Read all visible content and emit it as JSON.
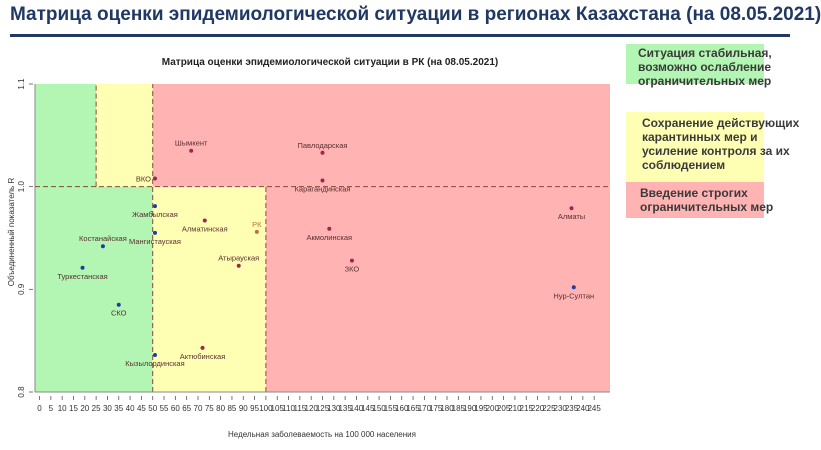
{
  "header": {
    "title": "Матрица оценки эпидемиологической ситуации в регионах Казахстана (на 08.05.2021)"
  },
  "legend": {
    "items": [
      {
        "label": "Ситуация стабильная, возможно ослабление ограничительных мер",
        "color": "#b3f5b3"
      },
      {
        "label": "Сохранение действующих карантинных мер и усиление контроля за их соблюдением",
        "color": "#ffffb4"
      },
      {
        "label": "Введение строгих ограничительных мер",
        "color": "#ffb3b3"
      }
    ]
  },
  "chart_data": {
    "type": "scatter",
    "title": "Матрица оценки эпидемиологической ситуации в РК (на 08.05.2021)",
    "xlabel": "Недельная заболеваемость на 100 000 населения",
    "ylabel": "Объединенный показатель R",
    "xlim": [
      -2,
      252
    ],
    "ylim": [
      0.8,
      1.1
    ],
    "xticks": [
      0,
      5,
      10,
      15,
      20,
      25,
      30,
      35,
      40,
      45,
      50,
      55,
      60,
      65,
      70,
      75,
      80,
      85,
      90,
      95,
      100,
      105,
      110,
      115,
      120,
      125,
      130,
      135,
      140,
      145,
      150,
      155,
      160,
      165,
      170,
      175,
      180,
      185,
      190,
      195,
      200,
      205,
      210,
      215,
      220,
      225,
      230,
      235,
      240,
      245
    ],
    "yticks": [
      0.8,
      0.9,
      1.0,
      1.1
    ],
    "zones": [
      {
        "x_from": -2,
        "x_to": 50,
        "y_from": 0.8,
        "y_to": 1.1,
        "color": "#b3f5b3"
      },
      {
        "x_from": 25,
        "x_to": 50,
        "y_from": 1.0,
        "y_to": 1.1,
        "color": "#ffffb4"
      },
      {
        "x_from": 50,
        "x_to": 100,
        "y_from": 0.8,
        "y_to": 1.0,
        "color": "#ffffb4"
      },
      {
        "x_from": 50,
        "x_to": 252,
        "y_from": 1.0,
        "y_to": 1.1,
        "color": "#ffb3b3"
      },
      {
        "x_from": 100,
        "x_to": 252,
        "y_from": 0.8,
        "y_to": 1.0,
        "color": "#ffb3b3"
      }
    ],
    "reference_lines": [
      {
        "axis": "x",
        "value": 25,
        "y_from": 1.0,
        "y_to": 1.1
      },
      {
        "axis": "x",
        "value": 50,
        "y_from": 0.8,
        "y_to": 1.1
      },
      {
        "axis": "x",
        "value": 100,
        "y_from": 0.8,
        "y_to": 1.0
      },
      {
        "axis": "y",
        "value": 1.0,
        "x_from": -2,
        "x_to": 252
      }
    ],
    "points": [
      {
        "label": "Шымкент",
        "x": 67,
        "y": 1.035,
        "color": "#a0264b",
        "label_pos": "above"
      },
      {
        "label": "Павлодарская",
        "x": 125,
        "y": 1.033,
        "color": "#a0264b",
        "label_pos": "above"
      },
      {
        "label": "ВКО",
        "x": 51,
        "y": 1.008,
        "color": "#a0264b",
        "label_pos": "left"
      },
      {
        "label": "Карагандинская",
        "x": 125,
        "y": 1.006,
        "color": "#a0264b",
        "label_pos": "below"
      },
      {
        "label": "Алматы",
        "x": 235,
        "y": 0.979,
        "color": "#a0264b",
        "label_pos": "below"
      },
      {
        "label": "Жамбылская",
        "x": 51,
        "y": 0.981,
        "color": "#1f3da0",
        "label_pos": "below"
      },
      {
        "label": "Алматинская",
        "x": 73,
        "y": 0.967,
        "color": "#a0264b",
        "label_pos": "below"
      },
      {
        "label": "РК",
        "x": 96,
        "y": 0.956,
        "color": "#c07038",
        "label_pos": "above"
      },
      {
        "label": "Мангистауская",
        "x": 51,
        "y": 0.955,
        "color": "#1f3da0",
        "label_pos": "below"
      },
      {
        "label": "Акмолинская",
        "x": 128,
        "y": 0.959,
        "color": "#a0264b",
        "label_pos": "below"
      },
      {
        "label": "Костанайская",
        "x": 28,
        "y": 0.942,
        "color": "#1f3da0",
        "label_pos": "above"
      },
      {
        "label": "Атырауская",
        "x": 88,
        "y": 0.923,
        "color": "#a0264b",
        "label_pos": "above"
      },
      {
        "label": "ЗКО",
        "x": 138,
        "y": 0.928,
        "color": "#a0264b",
        "label_pos": "below"
      },
      {
        "label": "Туркестанская",
        "x": 19,
        "y": 0.921,
        "color": "#1f3da0",
        "label_pos": "below"
      },
      {
        "label": "Нур-Султан",
        "x": 236,
        "y": 0.902,
        "color": "#1f3da0",
        "label_pos": "below"
      },
      {
        "label": "СКО",
        "x": 35,
        "y": 0.885,
        "color": "#1f3da0",
        "label_pos": "below"
      },
      {
        "label": "Актюбинская",
        "x": 72,
        "y": 0.843,
        "color": "#a0264b",
        "label_pos": "below"
      },
      {
        "label": "Кызылординская",
        "x": 51,
        "y": 0.836,
        "color": "#1f3da0",
        "label_pos": "below"
      }
    ]
  }
}
